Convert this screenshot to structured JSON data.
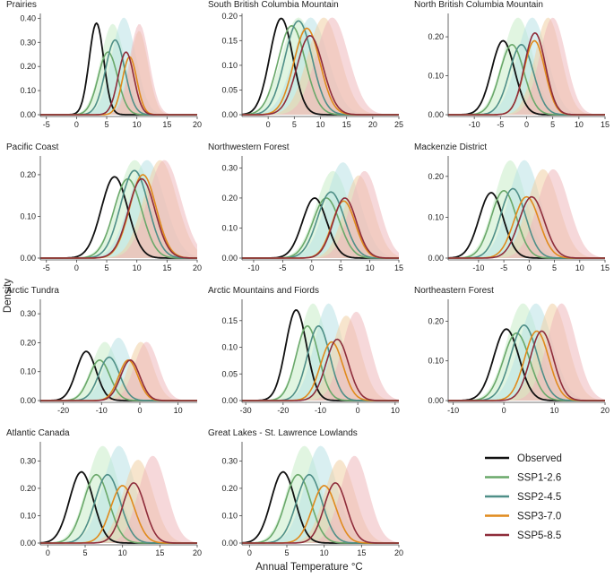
{
  "chart_data": {
    "type": "area",
    "xlabel": "Annual Temperature  °C",
    "ylabel": "Density",
    "legend": {
      "placement": "bottom-right",
      "entries": [
        {
          "key": "observed",
          "label": "Observed"
        },
        {
          "key": "ssp126",
          "label": "SSP1-2.6"
        },
        {
          "key": "ssp245",
          "label": "SSP2-4.5"
        },
        {
          "key": "ssp370",
          "label": "SSP3-7.0"
        },
        {
          "key": "ssp585",
          "label": "SSP5-8.5"
        }
      ]
    },
    "colors": {
      "observed": "#111111",
      "ssp126": "#6aa86a",
      "ssp245": "#4f8f88",
      "ssp370": "#e08a1c",
      "ssp585": "#8e2c3a",
      "shade126": "#c9ecc9",
      "shade245": "#b9e1e5",
      "shade370": "#f1d0a4",
      "shade585": "#eeb8bb"
    },
    "panels": [
      {
        "title": "Prairies",
        "xlim": [
          -6,
          20
        ],
        "xticks": [
          -5,
          0,
          5,
          10,
          15,
          20
        ],
        "ylim": [
          0,
          0.42
        ],
        "yticks": [
          0.0,
          0.1,
          0.2,
          0.3,
          0.4
        ],
        "series": {
          "observed": [
            3.3,
            1.2,
            0.38
          ],
          "ssp126": [
            5.2,
            1.6,
            0.26
          ],
          "ssp245": [
            6.4,
            1.6,
            0.31
          ],
          "ssp370": [
            8.8,
            1.2,
            0.24
          ],
          "ssp585": [
            8.2,
            1.3,
            0.26
          ]
        }
      },
      {
        "title": "South British Columbia Mountain",
        "xlim": [
          -5,
          25
        ],
        "xticks": [
          0,
          5,
          10,
          15,
          20,
          25
        ],
        "ylim": [
          0,
          0.205
        ],
        "yticks": [
          0.0,
          0.05,
          0.1,
          0.15,
          0.2
        ],
        "series": {
          "observed": [
            2.5,
            2.2,
            0.195
          ],
          "ssp126": [
            4.5,
            2.6,
            0.18
          ],
          "ssp245": [
            5.8,
            2.6,
            0.19
          ],
          "ssp370": [
            7.4,
            2.5,
            0.175
          ],
          "ssp585": [
            8.0,
            2.5,
            0.16
          ]
        }
      },
      {
        "title": "North British Columbia Mountain",
        "xlim": [
          -15,
          15
        ],
        "xticks": [
          -10,
          -5,
          0,
          5,
          10,
          15
        ],
        "ylim": [
          0,
          0.26
        ],
        "yticks": [
          0.0,
          0.1,
          0.2
        ],
        "series": {
          "observed": [
            -4.5,
            2.2,
            0.19
          ],
          "ssp126": [
            -2.8,
            2.3,
            0.18
          ],
          "ssp245": [
            -1.0,
            2.3,
            0.18
          ],
          "ssp370": [
            1.5,
            2.0,
            0.19
          ],
          "ssp585": [
            1.6,
            2.0,
            0.21
          ]
        }
      },
      {
        "title": "Pacific Coast",
        "xlim": [
          -6,
          20
        ],
        "xticks": [
          -5,
          0,
          5,
          10,
          15,
          20
        ],
        "ylim": [
          0,
          0.245
        ],
        "yticks": [
          0.0,
          0.1,
          0.2
        ],
        "series": {
          "observed": [
            6.3,
            2.2,
            0.195
          ],
          "ssp126": [
            8.5,
            2.3,
            0.19
          ],
          "ssp245": [
            9.6,
            2.3,
            0.21
          ],
          "ssp370": [
            11.0,
            2.2,
            0.2
          ],
          "ssp585": [
            10.8,
            2.2,
            0.19
          ]
        }
      },
      {
        "title": "Northwestern Forest",
        "xlim": [
          -12,
          15
        ],
        "xticks": [
          -10,
          -5,
          0,
          5,
          10,
          15
        ],
        "ylim": [
          0,
          0.34
        ],
        "yticks": [
          0.0,
          0.1,
          0.2,
          0.3
        ],
        "series": {
          "observed": [
            0.5,
            2.1,
            0.2
          ],
          "ssp126": [
            2.5,
            2.3,
            0.2
          ],
          "ssp245": [
            3.3,
            2.3,
            0.22
          ],
          "ssp370": [
            5.5,
            2.0,
            0.19
          ],
          "ssp585": [
            5.7,
            2.0,
            0.2
          ]
        }
      },
      {
        "title": "Mackenzie District",
        "xlim": [
          -16,
          15
        ],
        "xticks": [
          -10,
          -5,
          0,
          5,
          10,
          15
        ],
        "ylim": [
          0,
          0.25
        ],
        "yticks": [
          0.0,
          0.1,
          0.2
        ],
        "series": {
          "observed": [
            -7.5,
            2.4,
            0.16
          ],
          "ssp126": [
            -5.0,
            2.5,
            0.165
          ],
          "ssp245": [
            -3.2,
            2.5,
            0.17
          ],
          "ssp370": [
            -0.5,
            2.5,
            0.15
          ],
          "ssp585": [
            0.5,
            2.5,
            0.15
          ]
        }
      },
      {
        "title": "Arctic Tundra",
        "xlim": [
          -26,
          15
        ],
        "xticks": [
          -20,
          -10,
          0,
          10
        ],
        "ylim": [
          0,
          0.35
        ],
        "yticks": [
          0.0,
          0.1,
          0.2,
          0.3
        ],
        "series": {
          "observed": [
            -14.0,
            2.6,
            0.17
          ],
          "ssp126": [
            -10.5,
            2.7,
            0.14
          ],
          "ssp245": [
            -8.0,
            2.7,
            0.15
          ],
          "ssp370": [
            -3.0,
            2.5,
            0.14
          ],
          "ssp585": [
            -2.5,
            2.5,
            0.14
          ]
        }
      },
      {
        "title": "Arctic Mountains and Fiords",
        "xlim": [
          -31,
          11
        ],
        "xticks": [
          -30,
          -20,
          -10,
          0,
          10
        ],
        "ylim": [
          0,
          0.19
        ],
        "yticks": [
          0.0,
          0.05,
          0.1,
          0.15
        ],
        "series": {
          "observed": [
            -16.5,
            2.8,
            0.17
          ],
          "ssp126": [
            -13.5,
            3.0,
            0.14
          ],
          "ssp245": [
            -10.5,
            3.0,
            0.14
          ],
          "ssp370": [
            -7.0,
            3.0,
            0.11
          ],
          "ssp585": [
            -5.5,
            3.0,
            0.115
          ]
        }
      },
      {
        "title": "Northeastern Forest",
        "xlim": [
          -11,
          20
        ],
        "xticks": [
          -10,
          0,
          10,
          20
        ],
        "ylim": [
          0,
          0.255
        ],
        "yticks": [
          0.0,
          0.1,
          0.2
        ],
        "series": {
          "observed": [
            0.5,
            2.5,
            0.18
          ],
          "ssp126": [
            2.5,
            2.6,
            0.17
          ],
          "ssp245": [
            4.0,
            2.6,
            0.19
          ],
          "ssp370": [
            6.5,
            2.4,
            0.175
          ],
          "ssp585": [
            7.5,
            2.3,
            0.175
          ]
        }
      },
      {
        "title": "Atlantic Canada",
        "xlim": [
          -1,
          20
        ],
        "xticks": [
          0,
          5,
          10,
          15,
          20
        ],
        "ylim": [
          0,
          0.37
        ],
        "yticks": [
          0.0,
          0.1,
          0.2,
          0.3
        ],
        "series": {
          "observed": [
            4.5,
            1.6,
            0.26
          ],
          "ssp126": [
            6.5,
            1.7,
            0.25
          ],
          "ssp245": [
            8.0,
            1.7,
            0.25
          ],
          "ssp370": [
            10.0,
            1.6,
            0.21
          ],
          "ssp585": [
            11.5,
            1.5,
            0.22
          ]
        }
      },
      {
        "title": "Great Lakes - St. Lawrence Lowlands",
        "xlim": [
          -1,
          20
        ],
        "xticks": [
          0,
          5,
          10,
          15,
          20
        ],
        "ylim": [
          0,
          0.37
        ],
        "yticks": [
          0.0,
          0.1,
          0.2,
          0.3
        ],
        "series": {
          "observed": [
            4.5,
            1.6,
            0.26
          ],
          "ssp126": [
            6.5,
            1.7,
            0.25
          ],
          "ssp245": [
            8.0,
            1.7,
            0.25
          ],
          "ssp370": [
            10.0,
            1.6,
            0.21
          ],
          "ssp585": [
            11.5,
            1.5,
            0.22
          ]
        }
      }
    ]
  }
}
